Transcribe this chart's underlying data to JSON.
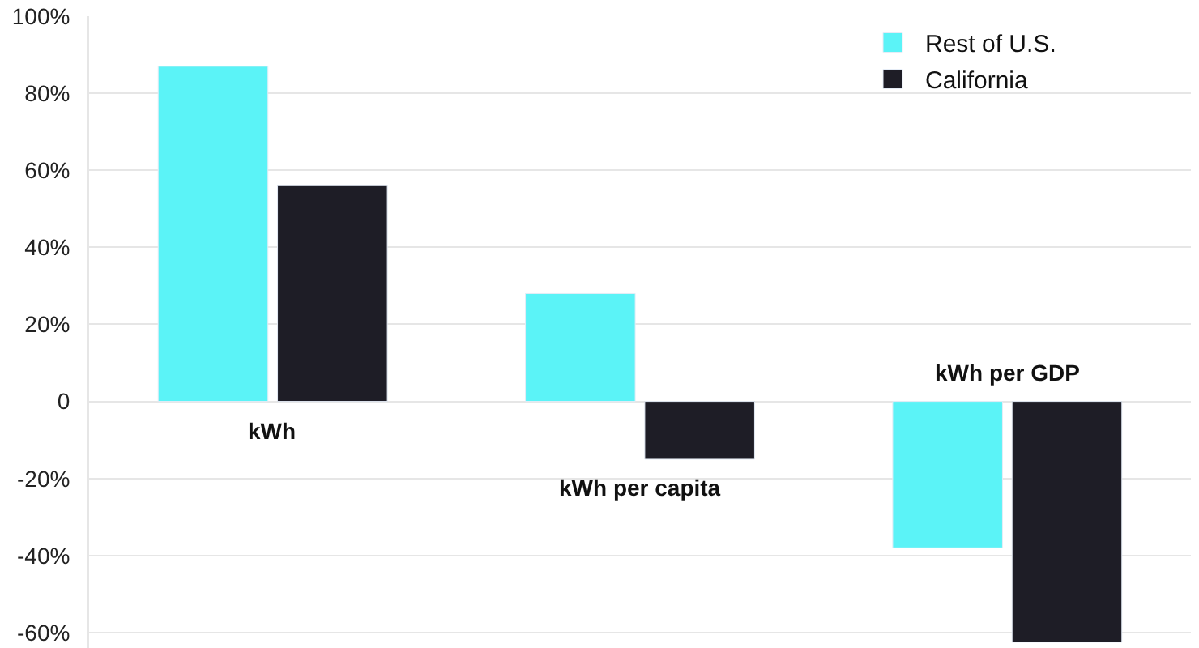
{
  "chart_data": {
    "type": "bar",
    "categories": [
      "kWh",
      "kWh per capita",
      "kWh per GDP"
    ],
    "series": [
      {
        "name": "Rest of U.S.",
        "color": "#5bf3f7",
        "values": [
          87,
          28,
          -38
        ]
      },
      {
        "name": "California",
        "color": "#1e1d26",
        "values": [
          56,
          -15,
          -62.5
        ]
      }
    ],
    "ylim": [
      -64,
      100
    ],
    "yticks": [
      {
        "value": 100,
        "label": "100%"
      },
      {
        "value": 80,
        "label": "80%"
      },
      {
        "value": 60,
        "label": "60%"
      },
      {
        "value": 40,
        "label": "40%"
      },
      {
        "value": 20,
        "label": "20%"
      },
      0,
      {
        "value": -20,
        "label": "-20%"
      },
      {
        "value": -40,
        "label": "-40%"
      },
      {
        "value": -60,
        "label": "-60%"
      }
    ],
    "grid": "y",
    "legend": "top right"
  }
}
